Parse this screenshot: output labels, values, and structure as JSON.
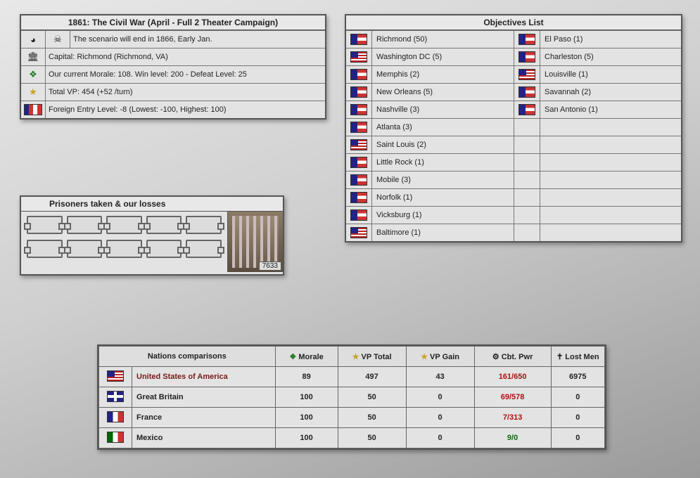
{
  "scenario": {
    "title": "1861: The Civil War (April - Full 2 Theater Campaign)",
    "end_text": "The scenario will end in 1866, Early Jan.",
    "capital_text": "Capital: Richmond (Richmond, VA)",
    "morale_text": "Our current Morale: 108. Win level: 200 - Defeat Level: 25",
    "vp_text": "Total VP: 454 (+52 /turn)",
    "foreign_text": "Foreign Entry Level: -8  (Lowest: -100, Highest: 100)"
  },
  "prisoners": {
    "title": "Prisoners taken & our losses",
    "loss_count": "7633"
  },
  "objectives": {
    "title": "Objectives List",
    "left": [
      {
        "flag": "csa",
        "name": "Richmond (50)"
      },
      {
        "flag": "usa",
        "name": "Washington DC (5)"
      },
      {
        "flag": "csa",
        "name": "Memphis (2)"
      },
      {
        "flag": "csa",
        "name": "New Orleans (5)"
      },
      {
        "flag": "csa",
        "name": "Nashville (3)"
      },
      {
        "flag": "csa",
        "name": "Atlanta (3)"
      },
      {
        "flag": "usa",
        "name": "Saint Louis (2)"
      },
      {
        "flag": "csa",
        "name": "Little Rock (1)"
      },
      {
        "flag": "csa",
        "name": "Mobile (3)"
      },
      {
        "flag": "csa",
        "name": "Norfolk (1)"
      },
      {
        "flag": "csa",
        "name": "Vicksburg (1)"
      },
      {
        "flag": "usa",
        "name": "Baltimore (1)"
      }
    ],
    "right": [
      {
        "flag": "csa",
        "name": "El Paso (1)"
      },
      {
        "flag": "csa",
        "name": "Charleston (5)"
      },
      {
        "flag": "usa",
        "name": "Louisville (1)"
      },
      {
        "flag": "csa",
        "name": "Savannah (2)"
      },
      {
        "flag": "csa",
        "name": "San Antonio (1)"
      },
      {
        "flag": "",
        "name": ""
      },
      {
        "flag": "",
        "name": ""
      },
      {
        "flag": "",
        "name": ""
      },
      {
        "flag": "",
        "name": ""
      },
      {
        "flag": "",
        "name": ""
      },
      {
        "flag": "",
        "name": ""
      },
      {
        "flag": "",
        "name": ""
      }
    ]
  },
  "nations": {
    "title": "Nations comparisons",
    "headers": {
      "morale": "Morale",
      "vp_total": "VP Total",
      "vp_gain": "VP Gain",
      "cbt": "Cbt. Pwr",
      "lost": "Lost Men"
    },
    "rows": [
      {
        "flag": "usa",
        "name": "United States of America",
        "morale": "89",
        "vp": "497",
        "gain": "43",
        "pwr": "161/650",
        "lost": "6975",
        "enemy": true,
        "green": false
      },
      {
        "flag": "gb",
        "name": "Great Britain",
        "morale": "100",
        "vp": "50",
        "gain": "0",
        "pwr": "69/578",
        "lost": "0",
        "enemy": false,
        "green": false
      },
      {
        "flag": "fr",
        "name": "France",
        "morale": "100",
        "vp": "50",
        "gain": "0",
        "pwr": "7/313",
        "lost": "0",
        "enemy": false,
        "green": false
      },
      {
        "flag": "mx",
        "name": "Mexico",
        "morale": "100",
        "vp": "50",
        "gain": "0",
        "pwr": "9/0",
        "lost": "0",
        "enemy": false,
        "green": true
      }
    ]
  },
  "icons": {
    "clock": "◕",
    "skull": "☠",
    "capitol": "🏛",
    "laurel": "❖",
    "star": "★",
    "shield": "⚔",
    "cross": "✝",
    "cannon": "⚙"
  }
}
